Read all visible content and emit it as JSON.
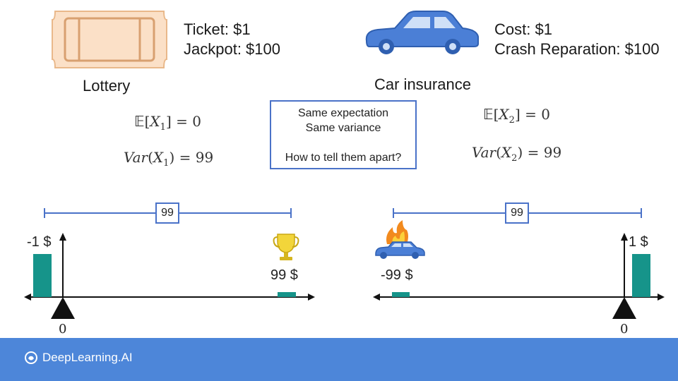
{
  "lottery": {
    "icon": "ticket-icon",
    "ticket": "Ticket: $1",
    "jackpot": "Jackpot: $100",
    "label": "Lottery",
    "expectation": {
      "op": "𝔼",
      "var": "X",
      "sub": "1",
      "rhs": "= 0"
    },
    "variance": {
      "name": "Var",
      "var": "X",
      "sub": "1",
      "rhs": "= 99"
    }
  },
  "insurance": {
    "icon": "car-icon",
    "cost": "Cost: $1",
    "reparation": "Crash Reparation: $100",
    "label": "Car insurance",
    "expectation": {
      "op": "𝔼",
      "var": "X",
      "sub": "2",
      "rhs": "= 0"
    },
    "variance": {
      "name": "Var",
      "var": "X",
      "sub": "2",
      "rhs": "= 99"
    }
  },
  "callout": {
    "line1": "Same expectation",
    "line2": "Same variance",
    "line3": "How to tell them apart?"
  },
  "left_plot": {
    "spread_label": "99",
    "neg_label": "-1 $",
    "pos_label": "99 $",
    "zero_label": "0",
    "pos_icon": "trophy-icon",
    "bar_color": "#16948a"
  },
  "right_plot": {
    "spread_label": "99",
    "neg_label": "-99 $",
    "pos_label": "1 $",
    "zero_label": "0",
    "neg_icon": "burning-car-icon",
    "bar_color": "#16948a"
  },
  "footer": {
    "brand": "DeepLearning.AI",
    "color": "#4d86d9"
  }
}
